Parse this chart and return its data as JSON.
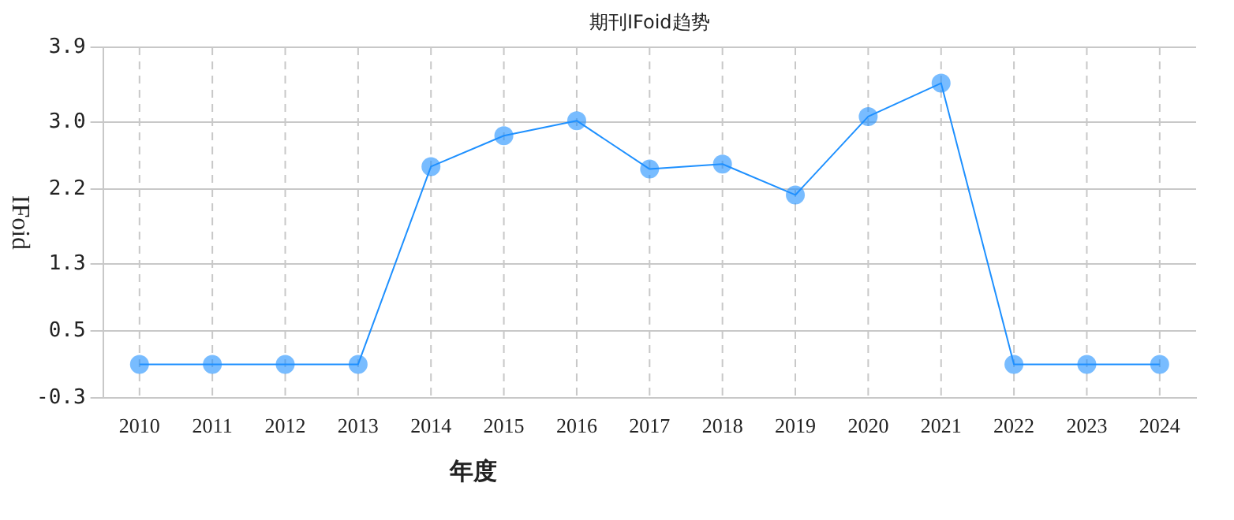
{
  "chart_data": {
    "type": "line",
    "title": "期刊IFoid趋势",
    "xlabel": "年度",
    "ylabel": "IFoid",
    "categories": [
      "2010",
      "2011",
      "2012",
      "2013",
      "2014",
      "2015",
      "2016",
      "2017",
      "2018",
      "2019",
      "2020",
      "2021",
      "2022",
      "2023",
      "2024"
    ],
    "series": [
      {
        "color": "#1e90ff",
        "values": [
          0.1,
          0.1,
          0.1,
          0.1,
          2.47,
          2.84,
          3.02,
          2.44,
          2.5,
          2.13,
          3.07,
          3.47,
          0.1,
          0.1,
          0.1
        ]
      }
    ],
    "ylim": [
      -0.3,
      3.9
    ],
    "yticks": [
      -0.3,
      0.5,
      1.3,
      2.2,
      {
        "value": 3.0,
        "label": "3.0"
      },
      3.9
    ],
    "grid": true,
    "legend": false,
    "marker": "circle",
    "line_style": "solid"
  }
}
